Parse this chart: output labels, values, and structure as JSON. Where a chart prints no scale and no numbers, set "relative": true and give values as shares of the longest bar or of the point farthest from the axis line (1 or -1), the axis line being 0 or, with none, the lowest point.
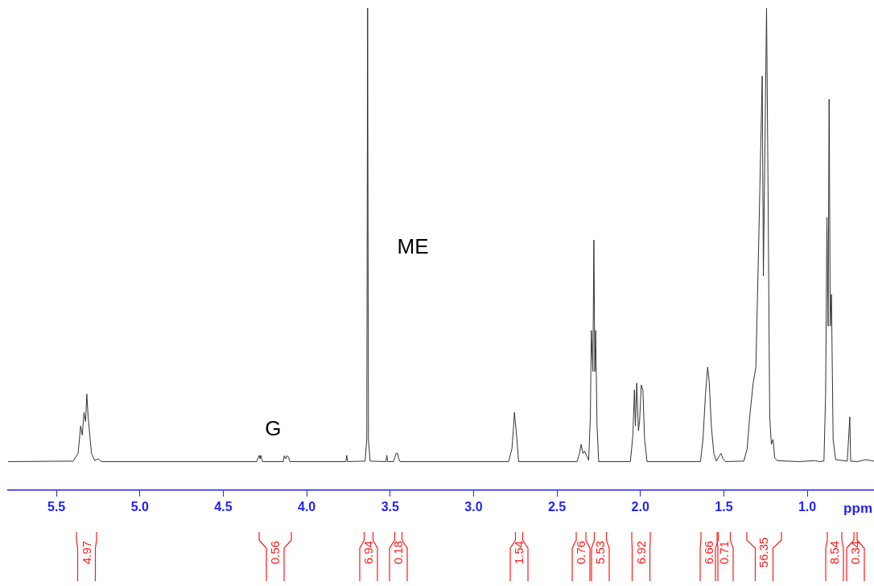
{
  "chart_data": {
    "type": "line",
    "relative": true,
    "xlabel": "ppm",
    "xlim": [
      5.79,
      0.6
    ],
    "xticks": [
      5.5,
      {
        "value": 5.0,
        "label": "5.0"
      },
      4.5,
      {
        "value": 4.0,
        "label": "4.0"
      },
      3.5,
      {
        "value": 3.0,
        "label": "3.0"
      },
      2.5,
      {
        "value": 2.0,
        "label": "2.0"
      },
      1.5,
      {
        "value": 1.0,
        "label": "1.0"
      }
    ],
    "grid": false,
    "legend": false,
    "marker": "none",
    "line_style": "solid",
    "series": [
      {
        "color": "#333333",
        "x": [
          5.79,
          5.4,
          5.37,
          5.355,
          5.345,
          5.335,
          5.325,
          5.318,
          5.31,
          5.3,
          5.29,
          5.27,
          5.25,
          5.23,
          4.3,
          4.285,
          4.28,
          4.275,
          4.265,
          4.14,
          4.135,
          4.125,
          4.12,
          4.11,
          4.1,
          3.765,
          3.76,
          3.755,
          3.65,
          3.64,
          3.635,
          3.63,
          3.62,
          3.525,
          3.52,
          3.515,
          3.48,
          3.47,
          3.465,
          3.455,
          3.45,
          3.44,
          2.79,
          2.77,
          2.76,
          2.755,
          2.75,
          2.74,
          2.73,
          2.38,
          2.365,
          2.355,
          2.345,
          2.335,
          2.31,
          2.3,
          2.294,
          2.285,
          2.279,
          2.273,
          2.268,
          2.26,
          2.25,
          2.06,
          2.045,
          2.036,
          2.03,
          2.022,
          2.012,
          2.005,
          1.995,
          1.985,
          1.975,
          1.96,
          1.64,
          1.625,
          1.61,
          1.597,
          1.588,
          1.575,
          1.56,
          1.545,
          1.525,
          1.517,
          1.505,
          1.49,
          1.38,
          1.36,
          1.345,
          1.324,
          1.308,
          1.29,
          1.27,
          1.263,
          1.255,
          1.244,
          1.235,
          1.225,
          1.215,
          1.205,
          1.195,
          1.18,
          1.05,
          0.95,
          0.93,
          0.9,
          0.89,
          0.882,
          0.875,
          0.869,
          0.862,
          0.855,
          0.845,
          0.83,
          0.76,
          0.745,
          0.74,
          0.7,
          0.65,
          0.6
        ],
        "values": [
          0.059,
          0.06,
          0.076,
          0.133,
          0.114,
          0.161,
          0.142,
          0.199,
          0.152,
          0.114,
          0.076,
          0.061,
          0.065,
          0.059,
          0.059,
          0.072,
          0.065,
          0.072,
          0.059,
          0.059,
          0.071,
          0.065,
          0.071,
          0.069,
          0.059,
          0.059,
          0.072,
          0.059,
          0.06,
          0.105,
          1,
          0.105,
          0.06,
          0.059,
          0.072,
          0.059,
          0.059,
          0.069,
          0.076,
          0.076,
          0.067,
          0.059,
          0.059,
          0.086,
          0.133,
          0.161,
          0.142,
          0.105,
          0.059,
          0.059,
          0.076,
          0.095,
          0.076,
          0.081,
          0.062,
          0.152,
          0.331,
          0.246,
          0.519,
          0.246,
          0.331,
          0.133,
          0.059,
          0.059,
          0.114,
          0.208,
          0.133,
          0.222,
          0.123,
          0.142,
          0.218,
          0.208,
          0.105,
          0.059,
          0.059,
          0.105,
          0.199,
          0.255,
          0.227,
          0.133,
          0.076,
          0.06,
          0.072,
          0.076,
          0.065,
          0.059,
          0.06,
          0.086,
          0.152,
          0.222,
          0.255,
          0.529,
          0.859,
          0.444,
          0.67,
          1,
          0.623,
          0.152,
          0.095,
          0.105,
          0.067,
          0.061,
          0.059,
          0.061,
          0.059,
          0.06,
          0.199,
          0.566,
          0.34,
          0.811,
          0.34,
          0.406,
          0.105,
          0.063,
          0.06,
          0.152,
          0.06,
          0.059,
          0.063,
          0.06
        ]
      }
    ],
    "annotations": [
      "G",
      "ME",
      "4.97",
      "0.56",
      "6.94",
      "0.18",
      "1.54",
      "0.76",
      "5.53",
      "6.92",
      "6.66",
      "0.71",
      "56.35",
      "8.54",
      "0.34"
    ]
  }
}
